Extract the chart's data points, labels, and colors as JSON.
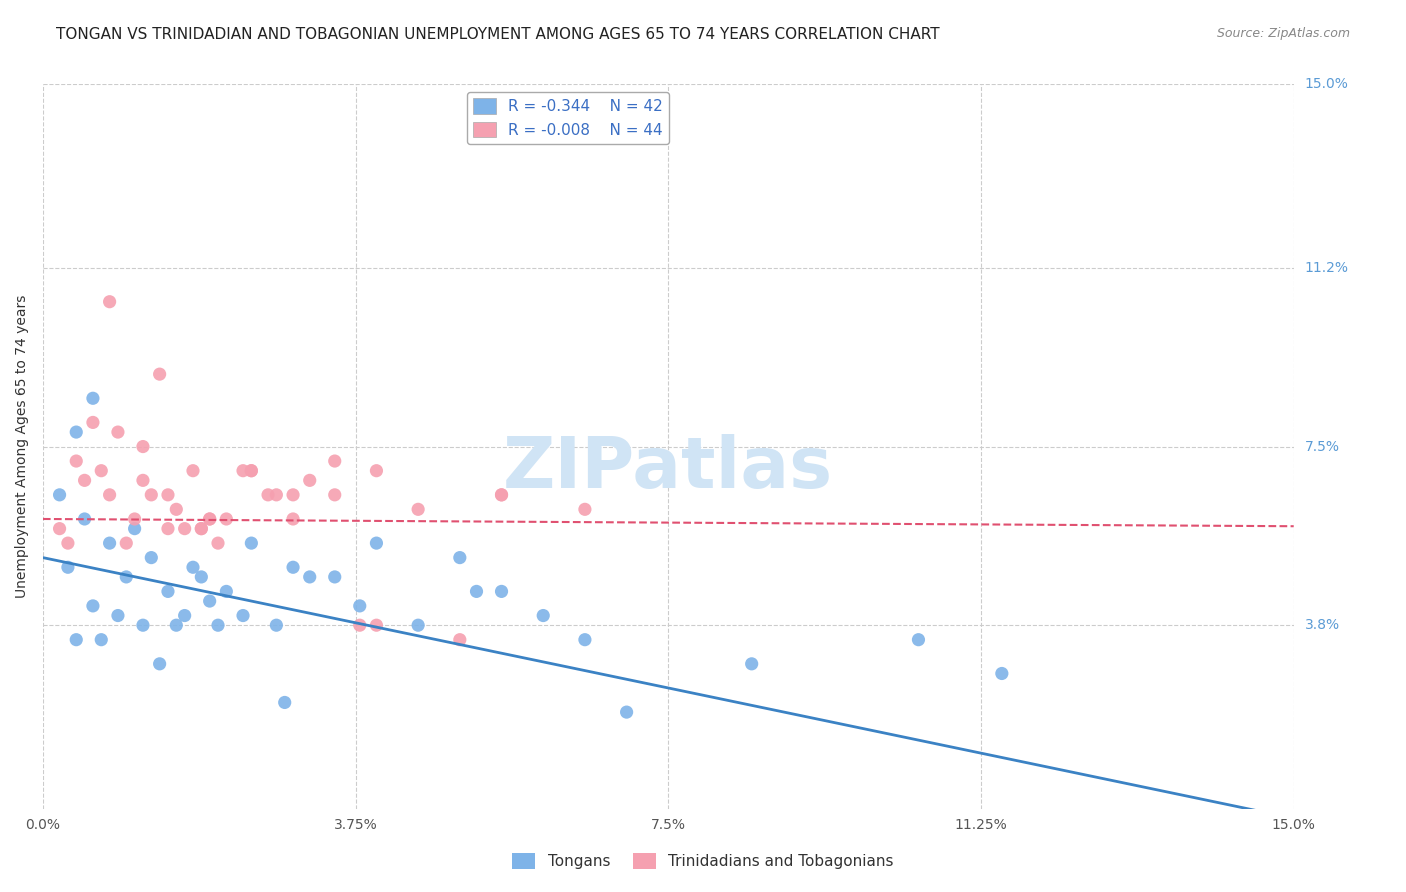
{
  "title": "TONGAN VS TRINIDADIAN AND TOBAGONIAN UNEMPLOYMENT AMONG AGES 65 TO 74 YEARS CORRELATION CHART",
  "source": "Source: ZipAtlas.com",
  "ylabel": "Unemployment Among Ages 65 to 74 years",
  "xticks": [
    0.0,
    3.75,
    7.5,
    11.25,
    15.0
  ],
  "xticklabels": [
    "0.0%",
    "3.75%",
    "7.5%",
    "11.25%",
    "15.0%"
  ],
  "right_ytick_labels": [
    "15.0%",
    "11.2%",
    "7.5%",
    "3.8%"
  ],
  "right_ytick_vals": [
    15.0,
    11.2,
    7.5,
    3.8
  ],
  "ylim": [
    0,
    15.0
  ],
  "xlim": [
    0,
    15.0
  ],
  "bg_color": "#ffffff",
  "grid_color": "#cccccc",
  "blue_color": "#7EB3E8",
  "pink_color": "#F5A0B0",
  "blue_line_color": "#3B82C4",
  "pink_line_color": "#E05070",
  "legend_R1": "R = -0.344",
  "legend_N1": "N = 42",
  "legend_R2": "R = -0.008",
  "legend_N2": "N = 44",
  "label1": "Tongans",
  "label2": "Trinidadians and Tobagonians",
  "tongan_x": [
    0.2,
    0.3,
    0.4,
    0.5,
    0.6,
    0.7,
    0.8,
    0.9,
    1.0,
    1.1,
    1.2,
    1.3,
    1.4,
    1.5,
    1.6,
    1.7,
    1.8,
    2.0,
    2.1,
    2.2,
    2.4,
    2.5,
    2.8,
    3.0,
    3.2,
    3.5,
    3.8,
    4.0,
    4.5,
    5.0,
    5.2,
    5.5,
    6.0,
    6.5,
    7.0,
    8.5,
    10.5,
    11.5,
    0.4,
    0.6,
    2.9,
    1.9
  ],
  "tongan_y": [
    6.5,
    5.0,
    7.8,
    6.0,
    4.2,
    3.5,
    5.5,
    4.0,
    4.8,
    5.8,
    3.8,
    5.2,
    3.0,
    4.5,
    3.8,
    4.0,
    5.0,
    4.3,
    3.8,
    4.5,
    4.0,
    5.5,
    3.8,
    5.0,
    4.8,
    4.8,
    4.2,
    5.5,
    3.8,
    5.2,
    4.5,
    4.5,
    4.0,
    3.5,
    2.0,
    3.0,
    3.5,
    2.8,
    3.5,
    8.5,
    2.2,
    4.8
  ],
  "tnt_x": [
    0.2,
    0.3,
    0.4,
    0.5,
    0.6,
    0.7,
    0.8,
    0.9,
    1.0,
    1.1,
    1.2,
    1.3,
    1.4,
    1.5,
    1.6,
    1.7,
    1.8,
    1.9,
    2.0,
    2.1,
    2.2,
    2.4,
    2.5,
    2.7,
    2.8,
    3.0,
    3.2,
    3.5,
    3.8,
    4.0,
    4.5,
    5.0,
    5.5,
    6.5,
    0.8,
    1.2,
    1.5,
    2.0,
    2.5,
    3.0,
    3.5,
    4.0,
    5.5,
    1.9
  ],
  "tnt_y": [
    5.8,
    5.5,
    7.2,
    6.8,
    8.0,
    7.0,
    6.5,
    7.8,
    5.5,
    6.0,
    7.5,
    6.5,
    9.0,
    6.5,
    6.2,
    5.8,
    7.0,
    5.8,
    6.0,
    5.5,
    6.0,
    7.0,
    7.0,
    6.5,
    6.5,
    6.0,
    6.8,
    7.2,
    3.8,
    7.0,
    6.2,
    3.5,
    6.5,
    6.2,
    10.5,
    6.8,
    5.8,
    6.0,
    7.0,
    6.5,
    6.5,
    3.8,
    6.5,
    5.8
  ],
  "blue_line_x": [
    0.0,
    15.0
  ],
  "blue_line_y": [
    5.2,
    -0.2
  ],
  "pink_line_x": [
    0.0,
    15.0
  ],
  "pink_line_y": [
    6.0,
    5.85
  ],
  "title_fontsize": 11,
  "label_fontsize": 10,
  "tick_fontsize": 10,
  "watermark_text": "ZIPatlas",
  "watermark_color": "#d0e4f5",
  "watermark_fontsize": 52
}
